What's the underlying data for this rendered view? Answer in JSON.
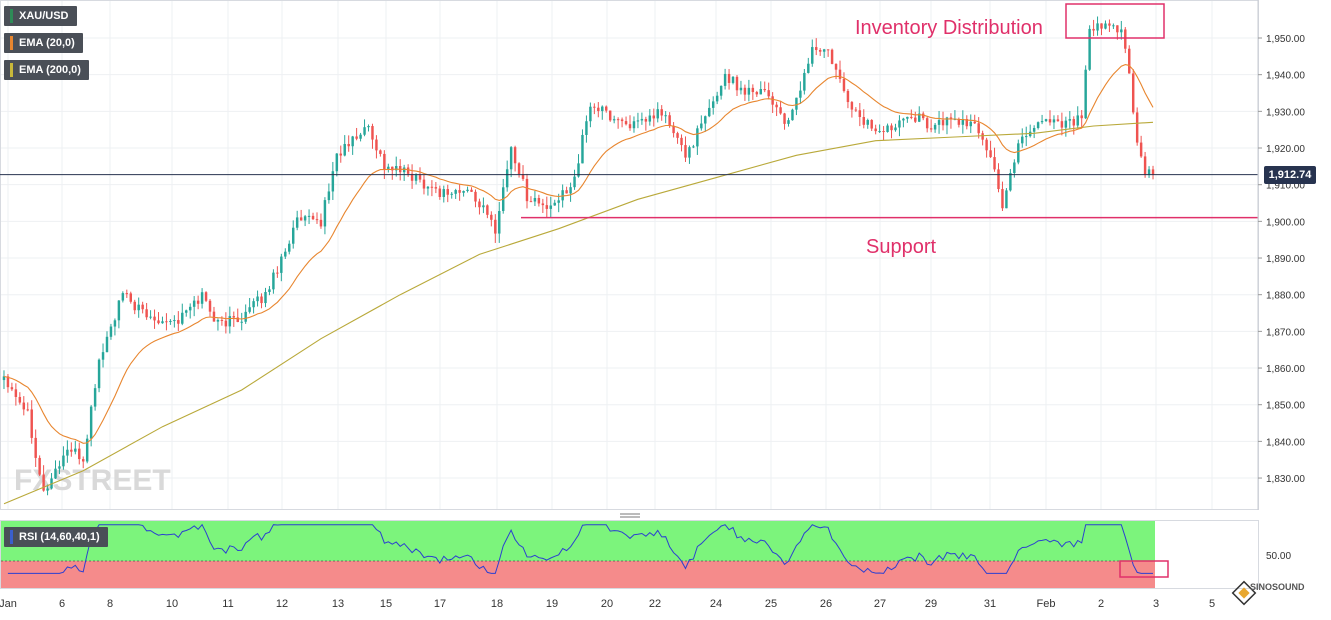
{
  "legend": [
    {
      "label": "XAU/USD",
      "color": "#2e8b57"
    },
    {
      "label": "EMA (20,0)",
      "color": "#e8862f"
    },
    {
      "label": "EMA (200,0)",
      "color": "#c8b83a"
    }
  ],
  "rsi_legend": {
    "label": "RSI (14,60,40,1)",
    "color": "#3a5fcd"
  },
  "current_price_label": "1,912.74",
  "watermark": "FXSTREET",
  "brand": "SINOSOUND",
  "colors": {
    "bull": "#26a69a",
    "bear": "#ef5350",
    "ema20": "#e8862f",
    "ema200": "#b9a93a",
    "annotation": "#e0306a",
    "price_line": "#27334f",
    "rsi_line": "#2b3fd1",
    "rsi_upper_zone": "#7cf47c",
    "rsi_lower_zone": "#f58b8b"
  },
  "chart_data": {
    "type": "candlestick",
    "instrument": "XAU/USD",
    "x_tick_labels": [
      "Jan",
      "6",
      "8",
      "10",
      "11",
      "12",
      "13",
      "15",
      "17",
      "18",
      "19",
      "20",
      "22",
      "24",
      "25",
      "26",
      "27",
      "29",
      "31",
      "Feb",
      "2",
      "3",
      "5"
    ],
    "y_tick_labels": [
      "1,830.00",
      "1,840.00",
      "1,850.00",
      "1,860.00",
      "1,870.00",
      "1,880.00",
      "1,890.00",
      "1,900.00",
      "1,910.00",
      "1,920.00",
      "1,930.00",
      "1,940.00",
      "1,950.00"
    ],
    "ylim": [
      1822,
      1960
    ],
    "last_price": 1912.74,
    "anchors": [
      {
        "i": 0,
        "v": 1858
      },
      {
        "i": 6,
        "v": 1848
      },
      {
        "i": 10,
        "v": 1826
      },
      {
        "i": 16,
        "v": 1838
      },
      {
        "i": 20,
        "v": 1835
      },
      {
        "i": 24,
        "v": 1862
      },
      {
        "i": 30,
        "v": 1880
      },
      {
        "i": 36,
        "v": 1874
      },
      {
        "i": 44,
        "v": 1873
      },
      {
        "i": 50,
        "v": 1880
      },
      {
        "i": 54,
        "v": 1872
      },
      {
        "i": 60,
        "v": 1874
      },
      {
        "i": 66,
        "v": 1880
      },
      {
        "i": 70,
        "v": 1890
      },
      {
        "i": 74,
        "v": 1900
      },
      {
        "i": 80,
        "v": 1900
      },
      {
        "i": 84,
        "v": 1918
      },
      {
        "i": 88,
        "v": 1922
      },
      {
        "i": 92,
        "v": 1926
      },
      {
        "i": 96,
        "v": 1915
      },
      {
        "i": 102,
        "v": 1913
      },
      {
        "i": 110,
        "v": 1908
      },
      {
        "i": 118,
        "v": 1908
      },
      {
        "i": 124,
        "v": 1898
      },
      {
        "i": 128,
        "v": 1920
      },
      {
        "i": 132,
        "v": 1907
      },
      {
        "i": 138,
        "v": 1903
      },
      {
        "i": 144,
        "v": 1912
      },
      {
        "i": 148,
        "v": 1932
      },
      {
        "i": 154,
        "v": 1928
      },
      {
        "i": 160,
        "v": 1926
      },
      {
        "i": 166,
        "v": 1930
      },
      {
        "i": 172,
        "v": 1918
      },
      {
        "i": 178,
        "v": 1930
      },
      {
        "i": 182,
        "v": 1940
      },
      {
        "i": 186,
        "v": 1936
      },
      {
        "i": 192,
        "v": 1936
      },
      {
        "i": 198,
        "v": 1926
      },
      {
        "i": 204,
        "v": 1947
      },
      {
        "i": 208,
        "v": 1946
      },
      {
        "i": 212,
        "v": 1935
      },
      {
        "i": 216,
        "v": 1928
      },
      {
        "i": 222,
        "v": 1924
      },
      {
        "i": 228,
        "v": 1930
      },
      {
        "i": 234,
        "v": 1926
      },
      {
        "i": 240,
        "v": 1928
      },
      {
        "i": 246,
        "v": 1925
      },
      {
        "i": 250,
        "v": 1915
      },
      {
        "i": 252,
        "v": 1903
      },
      {
        "i": 256,
        "v": 1922
      },
      {
        "i": 262,
        "v": 1928
      },
      {
        "i": 268,
        "v": 1927
      },
      {
        "i": 272,
        "v": 1928
      },
      {
        "i": 274,
        "v": 1952
      },
      {
        "i": 278,
        "v": 1953
      },
      {
        "i": 282,
        "v": 1953
      },
      {
        "i": 284,
        "v": 1940
      },
      {
        "i": 286,
        "v": 1920
      },
      {
        "i": 288,
        "v": 1913
      },
      {
        "i": 290,
        "v": 1912.7
      }
    ],
    "ema200_points": [
      {
        "i": 0,
        "v": 1823
      },
      {
        "i": 20,
        "v": 1832
      },
      {
        "i": 40,
        "v": 1844
      },
      {
        "i": 60,
        "v": 1854
      },
      {
        "i": 80,
        "v": 1868
      },
      {
        "i": 100,
        "v": 1880
      },
      {
        "i": 120,
        "v": 1891
      },
      {
        "i": 140,
        "v": 1898
      },
      {
        "i": 160,
        "v": 1906
      },
      {
        "i": 180,
        "v": 1912
      },
      {
        "i": 200,
        "v": 1918
      },
      {
        "i": 220,
        "v": 1922
      },
      {
        "i": 240,
        "v": 1923
      },
      {
        "i": 260,
        "v": 1924
      },
      {
        "i": 275,
        "v": 1926
      },
      {
        "i": 290,
        "v": 1927
      }
    ],
    "support_level": 1901,
    "annotations": [
      {
        "label": "Inventory Distribution"
      },
      {
        "label": "Support"
      }
    ],
    "rsi_panel": {
      "label": "RSI (14,60,40,1)",
      "tick_label": "50.00",
      "upper": 60,
      "lower": 40
    }
  }
}
